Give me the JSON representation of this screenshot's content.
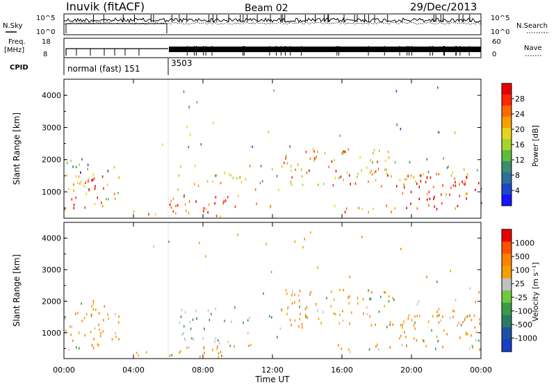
{
  "header": {
    "station": "Inuvik (fitACF)",
    "beam": "Beam 02",
    "date": "29/Dec/2013"
  },
  "status_panels": {
    "nsky_label": "N.Sky",
    "freq_label_1": "Freq.",
    "freq_label_2": "[MHz]",
    "cpid_label": "CPID",
    "nsearch_label": "N.Search",
    "nave_label": "Nave",
    "noise_left_ticks": [
      "10^5",
      "10^0"
    ],
    "noise_right_ticks": [
      "10^5",
      "10^0"
    ],
    "freq_left_ticks": [
      "18",
      "8"
    ],
    "nave_right_ticks": [
      "60",
      "0"
    ],
    "cpid_segments": [
      {
        "label": "normal (fast) 151",
        "start_hour": 0.0
      },
      {
        "label": "3503",
        "start_hour": 6.0
      }
    ]
  },
  "chart_data": [
    {
      "type": "heatmap",
      "name": "power-panel",
      "ylabel": "Slant Range [km]",
      "xlim_hours": [
        0,
        24
      ],
      "ylim_km": [
        180,
        4500
      ],
      "y_ticks": [
        1000,
        2000,
        3000,
        4000
      ],
      "colorbar": {
        "label": "Power [dB]",
        "ticks": [
          "4",
          "8",
          "12",
          "16",
          "20",
          "24",
          "28"
        ],
        "colors": [
          "#1414ff",
          "#1e46c8",
          "#2e6e9a",
          "#3c8c6e",
          "#5cbc3c",
          "#a8d22c",
          "#e8d21e",
          "#f5a000",
          "#ff6a00",
          "#ff2800",
          "#e80000"
        ]
      }
    },
    {
      "type": "heatmap",
      "name": "velocity-panel",
      "ylabel": "Slant Range [km]",
      "xlabel": "Time UT",
      "xlim_hours": [
        0,
        24
      ],
      "ylim_km": [
        180,
        4500
      ],
      "y_ticks": [
        1000,
        2000,
        3000,
        4000
      ],
      "x_ticks": [
        "00:00",
        "04:00",
        "08:00",
        "12:00",
        "16:00",
        "20:00",
        "00:00"
      ],
      "colorbar": {
        "label": "Velocity [m s⁻¹]",
        "ticks": [
          "1000",
          "500",
          "100",
          "25",
          "-25",
          "-100",
          "-500",
          "-1000"
        ],
        "colors": [
          "#1a3cc8",
          "#2050a0",
          "#2d7a64",
          "#3c9a46",
          "#6cc83c",
          "#c0c0c0",
          "#f5a000",
          "#ff8000",
          "#ff5000",
          "#e80000"
        ]
      }
    }
  ]
}
